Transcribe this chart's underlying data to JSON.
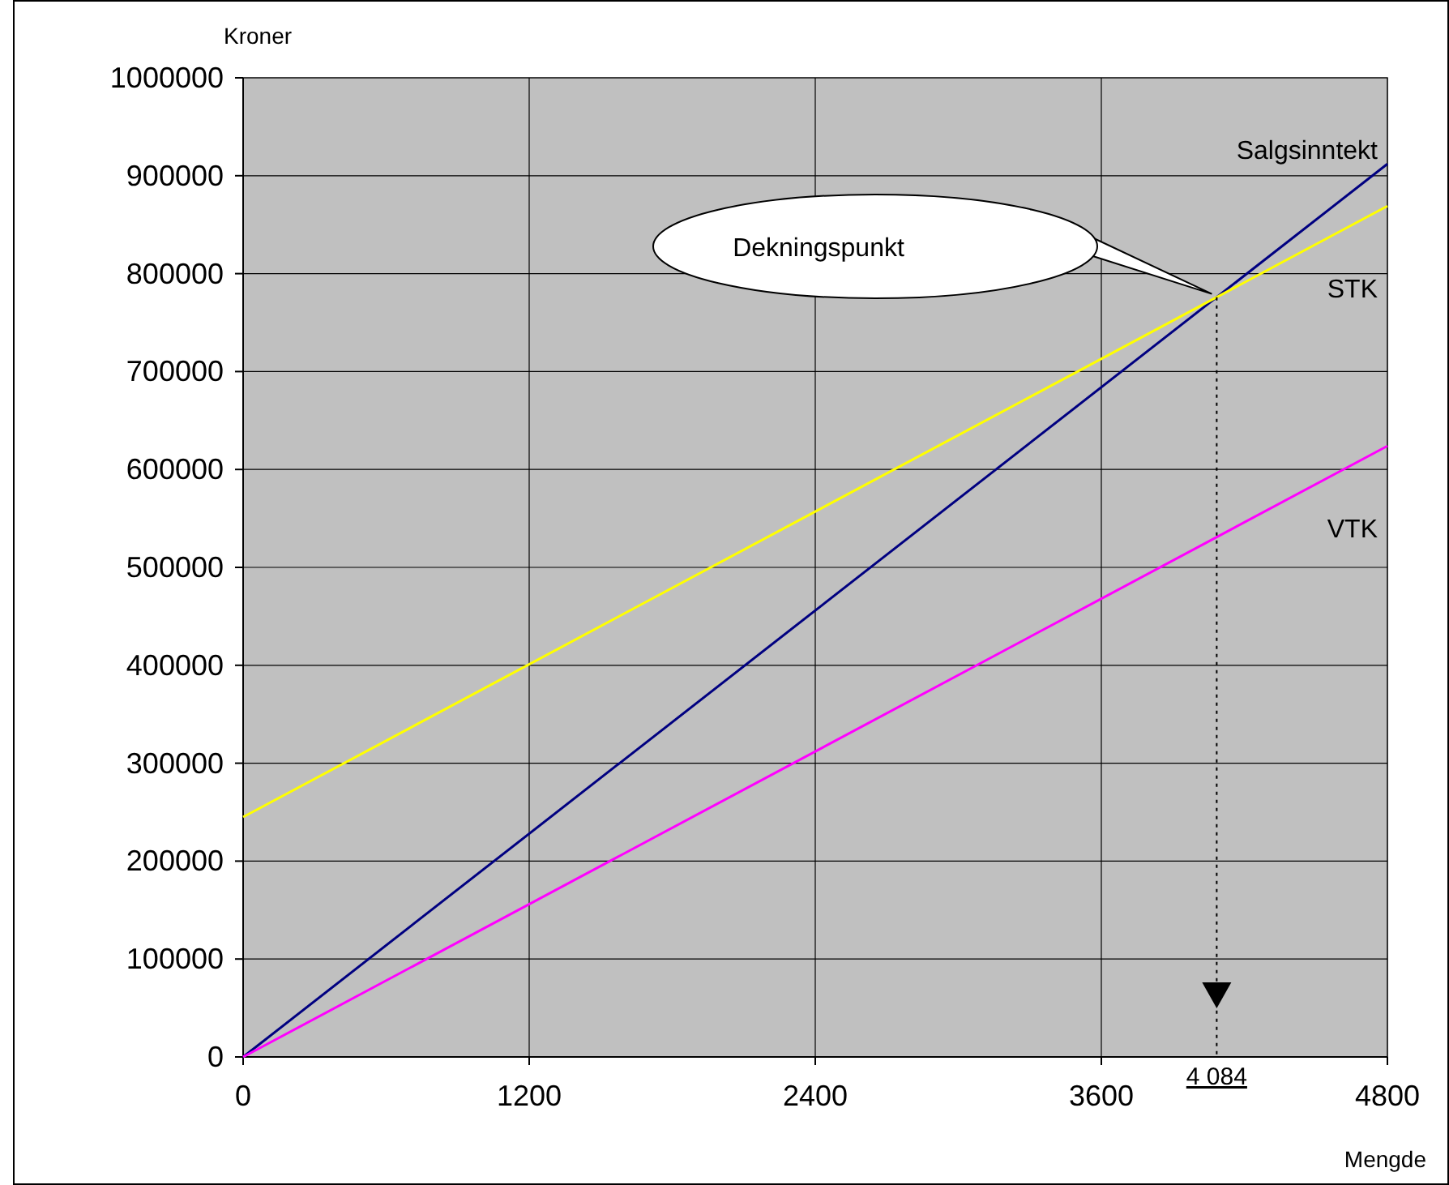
{
  "chart_data": {
    "type": "line",
    "xlabel": "Mengde",
    "ylabel": "Kroner",
    "x": [
      0,
      4800
    ],
    "series": [
      {
        "name": "Salgsinntekt",
        "color": "#000080",
        "values": [
          0,
          912000
        ]
      },
      {
        "name": "STK",
        "color": "#ffff00",
        "values": [
          245000,
          869000
        ]
      },
      {
        "name": "VTK",
        "color": "#ff00ff",
        "values": [
          0,
          624000
        ]
      }
    ],
    "xlim": [
      0,
      4800
    ],
    "xticks": [
      0,
      1200,
      2400,
      3600,
      4800
    ],
    "ylim": [
      0,
      1000000
    ],
    "yticks": [
      0,
      100000,
      200000,
      300000,
      400000,
      500000,
      600000,
      700000,
      800000,
      900000,
      1000000
    ],
    "grid": true,
    "legend": false,
    "marker": "none",
    "line_style": "solid",
    "annotations": [
      "Dekningspunkt"
    ],
    "ref_lines": [
      {
        "axis": "x",
        "value": 4084,
        "label": "4 084",
        "line_style": "dotted",
        "color": "#000000"
      }
    ]
  }
}
